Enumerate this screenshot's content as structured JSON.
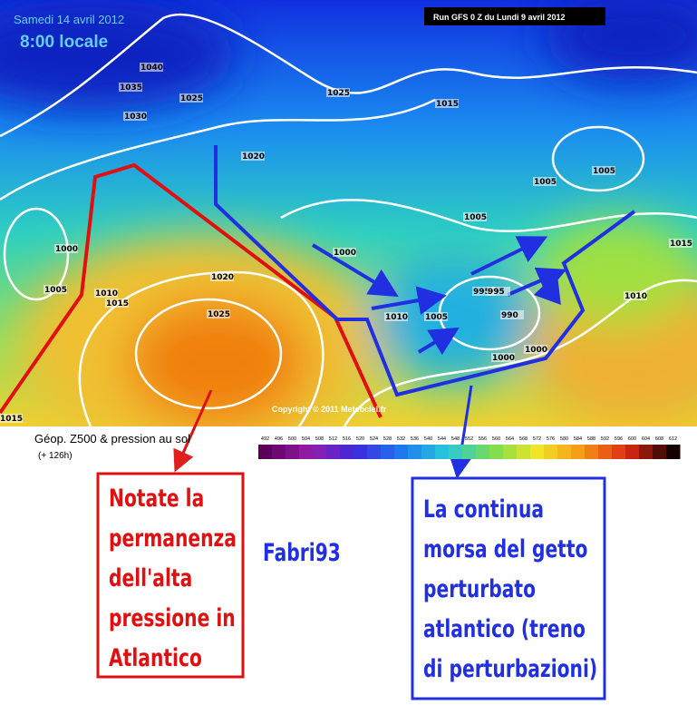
{
  "header": {
    "date": "Samedi 14 avril 2012",
    "time": "8:00 locale",
    "run": "Run GFS 0 Z du Lundi 9 avril 2012"
  },
  "map": {
    "isobar_labels": [
      "1040",
      "1035",
      "1025",
      "1030",
      "1025",
      "1015",
      "1020",
      "1005",
      "1005",
      "1005",
      "1000",
      "1000",
      "1015",
      "1005",
      "1010",
      "1015",
      "1020",
      "1025",
      "995",
      "995",
      "990",
      "1010",
      "1005",
      "1000",
      "1000",
      "1010",
      "1015"
    ],
    "copyright": "Copyright © 2011 Meteociel.fr"
  },
  "legend": {
    "title": "Géop. Z500 & pression au sol",
    "subtitle": "(+ 126h)",
    "scale": [
      492,
      496,
      500,
      504,
      508,
      512,
      516,
      520,
      524,
      528,
      532,
      536,
      540,
      544,
      548,
      552,
      556,
      560,
      564,
      568,
      572,
      576,
      580,
      584,
      588,
      592,
      596,
      600,
      604,
      608,
      612
    ]
  },
  "annotations": {
    "red": [
      "Notate la",
      "permanenza",
      "dell'alta",
      "pressione in",
      "Atlantico"
    ],
    "author": "Fabri93",
    "blue": [
      "La continua",
      "morsa del getto",
      "perturbato",
      "atlantico (treno",
      "di perturbazioni)"
    ]
  }
}
